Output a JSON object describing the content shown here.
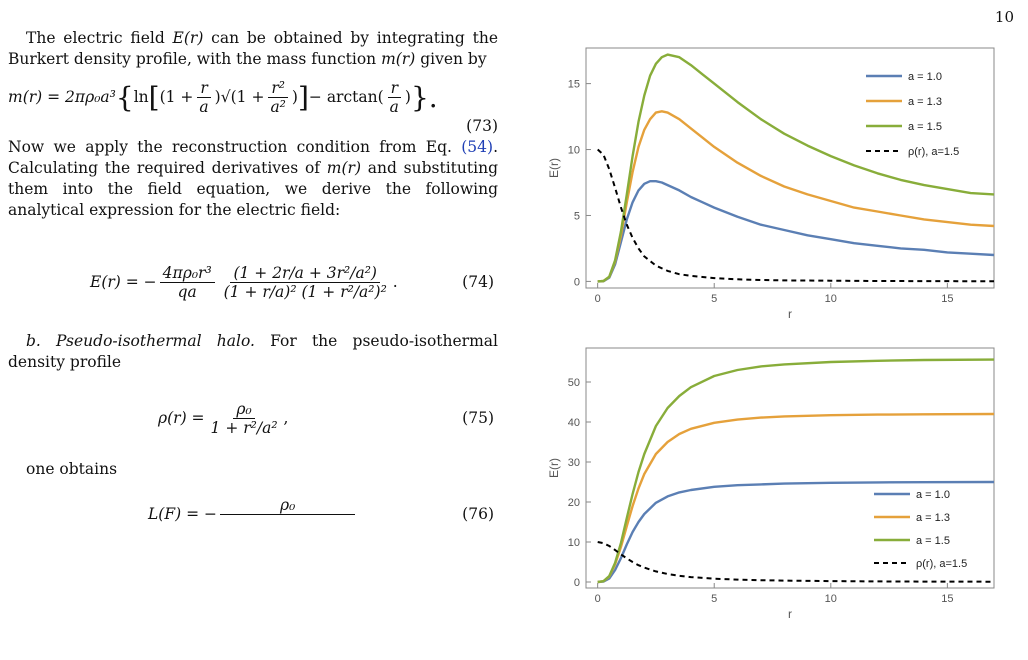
{
  "page_number": "10",
  "text": {
    "p1_a": "The electric field ",
    "p1_b": "E(r)",
    "p1_c": " can be obtained by integrating the Burkert density profile, with the mass function ",
    "p1_d": "m(r)",
    "p1_e": " given by",
    "eq73_lhs": "m(r) = 2πρ₀a³",
    "eq73_brace_open": "{",
    "eq73_ln": "ln",
    "eq73_bracket_open": "[",
    "eq73_term1_open": "(1 + ",
    "eq73_term1_num": "r",
    "eq73_term1_den": "a",
    "eq73_term1_close": ")",
    "eq73_sqrt": "√(1 + ",
    "eq73_sqrt_num": "r²",
    "eq73_sqrt_den": "a²",
    "eq73_sqrt_close": ")",
    "eq73_bracket_close": "]",
    "eq73_arctan": " − arctan",
    "eq73_atan_open": "(",
    "eq73_atan_num": "r",
    "eq73_atan_den": "a",
    "eq73_atan_close": ")",
    "eq73_brace_close": "}.",
    "eq73_num": "(73)",
    "p2_a": "Now we apply the reconstruction condition from Eq. ",
    "p2_ref": "(54)",
    "p2_b": ". Calculating the required derivatives of ",
    "p2_c": "m(r)",
    "p2_d": " and substituting them into the field equation, we derive the following analytical expression for the electric field:",
    "eq74_lhs": "E(r) = −",
    "eq74_f1_num": "4πρ₀r³",
    "eq74_f1_den": "qa",
    "eq74_f2_num": "(1 + 2r/a + 3r²/a²)",
    "eq74_f2_den": "(1 + r/a)² (1 + r²/a²)²",
    "eq74_end": ".",
    "eq74_num": "(74)",
    "p3_label": "b. Pseudo-isothermal halo.",
    "p3_text": " For the pseudo-isothermal density profile",
    "eq75_lhs": "ρ(r) =",
    "eq75_num": "ρ₀",
    "eq75_den": "1 + r²/a²",
    "eq75_end": ",",
    "eq75_number": "(75)",
    "p4": "one obtains",
    "eq76_lhs": "L(F) = −",
    "eq76_num": "ρ₀",
    "eq76_number": "(76)"
  },
  "chart_data": [
    {
      "type": "line",
      "xlabel": "r",
      "ylabel": "E(r)",
      "xlim": [
        -0.5,
        17
      ],
      "ylim": [
        -0.5,
        17.7
      ],
      "xticks": [
        "0",
        "5",
        "10",
        "15"
      ],
      "yticks": [
        "0",
        "5",
        "10",
        "15"
      ],
      "xtick_values": [
        0,
        5,
        10,
        15
      ],
      "ytick_values": [
        0,
        5,
        10,
        15
      ],
      "legend_position": "top-right",
      "series": [
        {
          "name": "a = 1.0",
          "color": "#5b7fb4",
          "dash": false,
          "x": [
            0,
            0.25,
            0.5,
            0.75,
            1,
            1.25,
            1.5,
            1.75,
            2,
            2.25,
            2.5,
            2.75,
            3,
            3.5,
            4,
            4.5,
            5,
            6,
            7,
            8,
            9,
            10,
            11,
            12,
            13,
            14,
            15,
            16,
            17
          ],
          "y": [
            0,
            0.01,
            0.29,
            1.3,
            3.0,
            4.7,
            6.0,
            6.9,
            7.4,
            7.6,
            7.6,
            7.5,
            7.3,
            6.9,
            6.4,
            6.0,
            5.6,
            4.9,
            4.3,
            3.9,
            3.5,
            3.2,
            2.9,
            2.7,
            2.5,
            2.4,
            2.2,
            2.1,
            2.0
          ]
        },
        {
          "name": "a = 1.3",
          "color": "#e5a13b",
          "dash": false,
          "x": [
            0,
            0.25,
            0.5,
            0.75,
            1,
            1.25,
            1.5,
            1.75,
            2,
            2.25,
            2.5,
            2.75,
            3,
            3.5,
            4,
            4.5,
            5,
            6,
            7,
            8,
            9,
            10,
            11,
            12,
            13,
            14,
            15,
            16,
            17
          ],
          "y": [
            0,
            0.03,
            0.35,
            1.5,
            3.5,
            6.0,
            8.3,
            10.2,
            11.5,
            12.3,
            12.8,
            12.9,
            12.8,
            12.3,
            11.6,
            10.9,
            10.2,
            9.0,
            8.0,
            7.2,
            6.6,
            6.1,
            5.6,
            5.3,
            5.0,
            4.7,
            4.5,
            4.3,
            4.2
          ]
        },
        {
          "name": "a = 1.5",
          "color": "#88ad3a",
          "dash": false,
          "x": [
            0,
            0.25,
            0.5,
            0.75,
            1,
            1.25,
            1.5,
            1.75,
            2,
            2.25,
            2.5,
            2.75,
            3,
            3.5,
            4,
            4.5,
            5,
            6,
            7,
            8,
            9,
            10,
            11,
            12,
            13,
            14,
            15,
            16,
            17
          ],
          "y": [
            0,
            0.03,
            0.36,
            1.6,
            3.8,
            6.6,
            9.5,
            12.1,
            14.1,
            15.6,
            16.5,
            17.0,
            17.2,
            17.0,
            16.4,
            15.7,
            15.0,
            13.6,
            12.3,
            11.2,
            10.3,
            9.5,
            8.8,
            8.2,
            7.7,
            7.3,
            7.0,
            6.7,
            6.6
          ]
        },
        {
          "name": "ρ(r), a=1.5",
          "color": "#000000",
          "dash": true,
          "x": [
            0,
            0.25,
            0.5,
            0.75,
            1,
            1.25,
            1.5,
            1.75,
            2,
            2.5,
            3,
            3.5,
            4,
            5,
            6,
            7,
            8,
            10,
            12,
            14,
            17
          ],
          "y": [
            10.0,
            9.6,
            8.5,
            7.1,
            5.6,
            4.3,
            3.3,
            2.5,
            1.9,
            1.2,
            0.8,
            0.55,
            0.42,
            0.25,
            0.16,
            0.11,
            0.08,
            0.05,
            0.03,
            0.02,
            0.01
          ]
        }
      ]
    },
    {
      "type": "line",
      "xlabel": "r",
      "ylabel": "E(r)",
      "xlim": [
        -0.5,
        17
      ],
      "ylim": [
        -1.5,
        58.5
      ],
      "xticks": [
        "0",
        "5",
        "10",
        "15"
      ],
      "yticks": [
        "0",
        "10",
        "20",
        "30",
        "40",
        "50"
      ],
      "xtick_values": [
        0,
        5,
        10,
        15
      ],
      "ytick_values": [
        0,
        10,
        20,
        30,
        40,
        50
      ],
      "legend_position": "bottom-right",
      "series": [
        {
          "name": "a = 1.0",
          "color": "#5b7fb4",
          "dash": false,
          "x": [
            0,
            0.25,
            0.5,
            0.75,
            1,
            1.25,
            1.5,
            1.75,
            2,
            2.5,
            3,
            3.5,
            4,
            5,
            6,
            7,
            8,
            10,
            12,
            14,
            17
          ],
          "y": [
            0,
            0.1,
            0.9,
            3.0,
            6.0,
            9.4,
            12.5,
            15.0,
            17.0,
            19.8,
            21.4,
            22.4,
            23.0,
            23.8,
            24.2,
            24.4,
            24.6,
            24.8,
            24.9,
            24.95,
            25.0
          ]
        },
        {
          "name": "a = 1.3",
          "color": "#e5a13b",
          "dash": false,
          "x": [
            0,
            0.25,
            0.5,
            0.75,
            1,
            1.25,
            1.5,
            1.75,
            2,
            2.5,
            3,
            3.5,
            4,
            5,
            6,
            7,
            8,
            10,
            12,
            14,
            17
          ],
          "y": [
            0,
            0.2,
            1.4,
            4.4,
            8.8,
            14.0,
            19.0,
            23.4,
            27.0,
            32.0,
            35.0,
            37.0,
            38.3,
            39.8,
            40.6,
            41.1,
            41.4,
            41.7,
            41.85,
            41.92,
            42.0
          ]
        },
        {
          "name": "a = 1.5",
          "color": "#88ad3a",
          "dash": false,
          "x": [
            0,
            0.25,
            0.5,
            0.75,
            1,
            1.25,
            1.5,
            1.75,
            2,
            2.5,
            3,
            3.5,
            4,
            5,
            6,
            7,
            8,
            10,
            12,
            14,
            17
          ],
          "y": [
            0,
            0.2,
            1.5,
            4.8,
            9.8,
            16.0,
            22.0,
            27.5,
            32.0,
            39.0,
            43.5,
            46.5,
            48.7,
            51.5,
            53.0,
            53.9,
            54.4,
            55.0,
            55.3,
            55.5,
            55.6
          ]
        },
        {
          "name": "ρ(r), a=1.5",
          "color": "#000000",
          "dash": true,
          "x": [
            0,
            0.25,
            0.5,
            0.75,
            1,
            1.25,
            1.5,
            1.75,
            2,
            2.5,
            3,
            3.5,
            4,
            5,
            6,
            7,
            8,
            10,
            12,
            14,
            17
          ],
          "y": [
            10.0,
            9.7,
            9.0,
            8.0,
            6.9,
            5.9,
            5.0,
            4.2,
            3.6,
            2.65,
            2.0,
            1.55,
            1.23,
            0.83,
            0.59,
            0.44,
            0.34,
            0.22,
            0.15,
            0.11,
            0.08
          ]
        }
      ]
    }
  ]
}
